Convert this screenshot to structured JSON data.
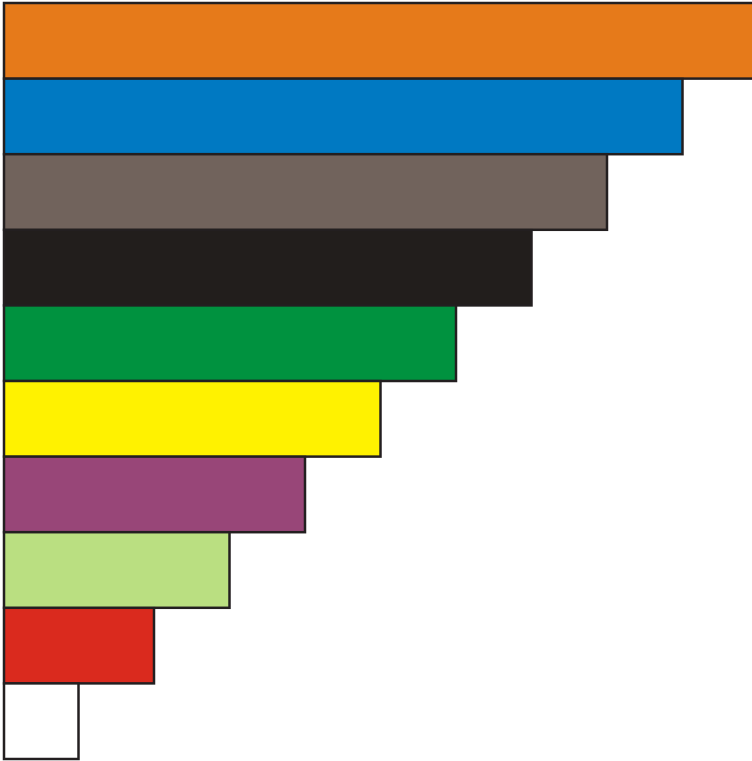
{
  "rods": [
    {
      "length": 10,
      "color": "#E67A1A"
    },
    {
      "length": 9,
      "color": "#0079C2"
    },
    {
      "length": 8,
      "color": "#71635C"
    },
    {
      "length": 7,
      "color": "#221E1C"
    },
    {
      "length": 6,
      "color": "#00923F"
    },
    {
      "length": 5,
      "color": "#FFF200"
    },
    {
      "length": 4,
      "color": "#984678"
    },
    {
      "length": 3,
      "color": "#BADF81"
    },
    {
      "length": 2,
      "color": "#DA2A1E"
    },
    {
      "length": 1,
      "color": "#FFFFFF"
    }
  ],
  "outline_color": "#231F20"
}
